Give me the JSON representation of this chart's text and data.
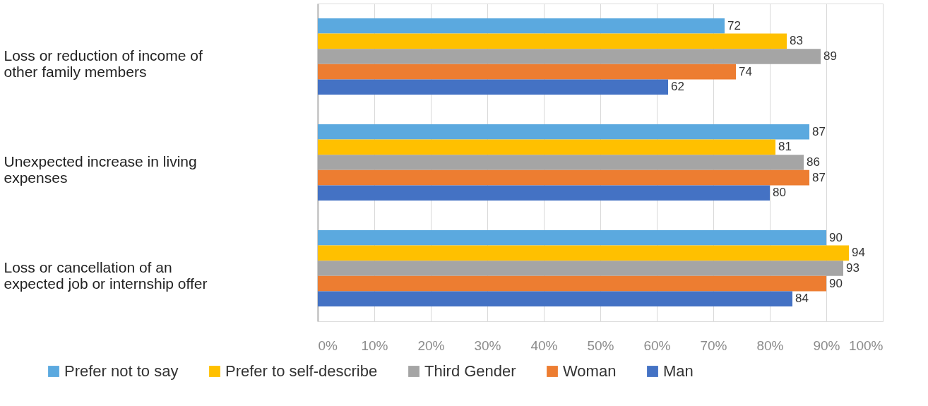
{
  "chart_data": {
    "type": "bar",
    "orientation": "horizontal",
    "categories": [
      "Loss or reduction of income of other family members",
      "Unexpected increase in living expenses",
      "Loss or cancellation of an expected job or internship offer"
    ],
    "series": [
      {
        "name": "Prefer not to say",
        "color": "#5ba9df",
        "values": [
          72,
          87,
          90
        ]
      },
      {
        "name": "Prefer to self-describe",
        "color": "#ffc000",
        "values": [
          83,
          81,
          94
        ]
      },
      {
        "name": "Third Gender",
        "color": "#a5a5a5",
        "values": [
          89,
          86,
          93
        ]
      },
      {
        "name": "Woman",
        "color": "#ed7d31",
        "values": [
          74,
          87,
          90
        ]
      },
      {
        "name": "Man",
        "color": "#4472c4",
        "values": [
          62,
          80,
          84
        ]
      }
    ],
    "xlim": [
      0,
      100
    ],
    "xticks": [
      {
        "value": 0,
        "label": "0%"
      },
      {
        "value": 10,
        "label": "10%"
      },
      {
        "value": 20,
        "label": "20%"
      },
      {
        "value": 30,
        "label": "30%"
      },
      {
        "value": 40,
        "label": "40%"
      },
      {
        "value": 50,
        "label": "50%"
      },
      {
        "value": 60,
        "label": "60%"
      },
      {
        "value": 70,
        "label": "70%"
      },
      {
        "value": 80,
        "label": "80%"
      },
      {
        "value": 90,
        "label": "90%"
      },
      {
        "value": 100,
        "label": "100%"
      }
    ],
    "grid": "x",
    "legend": "bottom",
    "data_labels": true
  }
}
